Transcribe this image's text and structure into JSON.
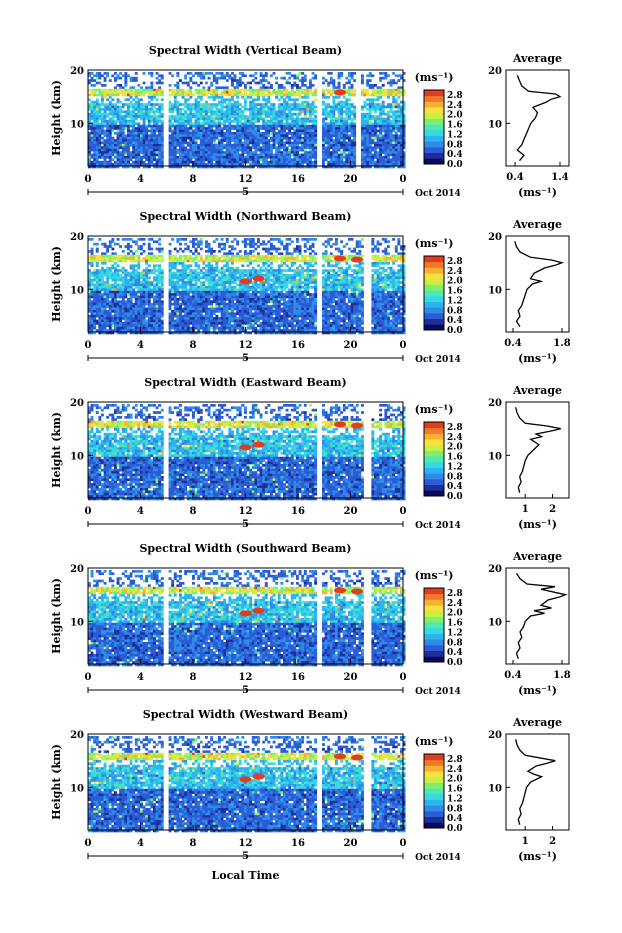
{
  "figure": {
    "xlabel": "Local Time",
    "cbar_colors": [
      "#0a0a5a",
      "#1f2f9a",
      "#2a5cd6",
      "#2f8ae8",
      "#2ab4f0",
      "#38d8e0",
      "#4ee8b0",
      "#7ef070",
      "#c8f040",
      "#f8e040",
      "#f8b030",
      "#f07828",
      "#e03c20"
    ]
  },
  "chart_data": [
    {
      "type": "heatmap",
      "title": "Spectral Width (Vertical Beam)",
      "ylabel": "Height (km)",
      "ylim": [
        2,
        20
      ],
      "yticks": [
        "10",
        "20"
      ],
      "xlim": [
        0,
        24
      ],
      "xticks": [
        "0",
        "4",
        "8",
        "12",
        "16",
        "20",
        "0"
      ],
      "date_marker": "5",
      "date_label": "Oct 2014",
      "gaps_hours": [
        5.8,
        17.6,
        20.5
      ],
      "colorbar": {
        "label": "(ms⁻¹)",
        "ticks": [
          "2.8",
          "2.4",
          "2.0",
          "1.6",
          "1.2",
          "0.8",
          "0.4",
          "0.0"
        ],
        "range": [
          0,
          3.0
        ]
      },
      "profile": {
        "title": "Average",
        "xlabel": "(ms⁻¹)",
        "xticks": [
          "0.4",
          "1.4"
        ],
        "xlim": [
          0.2,
          1.6
        ],
        "heights": [
          3,
          4,
          5,
          6,
          7,
          8,
          9,
          10,
          11,
          12,
          13,
          14,
          14.5,
          15,
          15.5,
          16,
          17,
          18,
          19
        ],
        "values": [
          0.5,
          0.6,
          0.45,
          0.55,
          0.6,
          0.65,
          0.7,
          0.75,
          0.85,
          0.9,
          0.8,
          1.1,
          1.2,
          1.4,
          1.3,
          0.7,
          0.55,
          0.5,
          0.45
        ]
      }
    },
    {
      "type": "heatmap",
      "title": "Spectral Width (Northward Beam)",
      "ylabel": "Height (km)",
      "ylim": [
        2,
        20
      ],
      "yticks": [
        "10",
        "20"
      ],
      "xlim": [
        0,
        24
      ],
      "xticks": [
        "0",
        "4",
        "8",
        "12",
        "16",
        "20",
        "0"
      ],
      "date_marker": "5",
      "date_label": "Oct 2014",
      "gaps_hours": [
        5.8,
        17.6,
        21.2
      ],
      "colorbar": {
        "label": "(ms⁻¹)",
        "ticks": [
          "2.8",
          "2.4",
          "2.0",
          "1.6",
          "1.2",
          "0.8",
          "0.4",
          "0.0"
        ],
        "range": [
          0,
          3.0
        ]
      },
      "profile": {
        "title": "Average",
        "xlabel": "(ms⁻¹)",
        "xticks": [
          "0.4",
          "1.8"
        ],
        "xlim": [
          0.2,
          2.0
        ],
        "heights": [
          3,
          4,
          5,
          6,
          7,
          8,
          9,
          10,
          11,
          11.5,
          12,
          13,
          14,
          14.5,
          15,
          15.5,
          16,
          17,
          18,
          19
        ],
        "values": [
          0.6,
          0.5,
          0.6,
          0.55,
          0.65,
          0.7,
          0.75,
          0.8,
          0.95,
          1.2,
          0.9,
          1.0,
          1.3,
          1.6,
          1.8,
          1.5,
          0.9,
          0.6,
          0.5,
          0.45
        ]
      }
    },
    {
      "type": "heatmap",
      "title": "Spectral Width (Eastward Beam)",
      "ylabel": "Height (km)",
      "ylim": [
        2,
        20
      ],
      "yticks": [
        "10",
        "20"
      ],
      "xlim": [
        0,
        24
      ],
      "xticks": [
        "0",
        "4",
        "8",
        "12",
        "16",
        "20",
        "0"
      ],
      "date_marker": "5",
      "date_label": "Oct 2014",
      "gaps_hours": [
        5.8,
        17.6,
        21.2
      ],
      "colorbar": {
        "label": "(ms⁻¹)",
        "ticks": [
          "2.8",
          "2.4",
          "2.0",
          "1.6",
          "1.2",
          "0.8",
          "0.4",
          "0.0"
        ],
        "range": [
          0,
          3.0
        ]
      },
      "profile": {
        "title": "Average",
        "xlabel": "(ms⁻¹)",
        "xticks": [
          "1",
          "2"
        ],
        "xlim": [
          0.3,
          2.6
        ],
        "heights": [
          3,
          4,
          5,
          6,
          7,
          8,
          9,
          10,
          11,
          12,
          13,
          13.5,
          14,
          14.5,
          15,
          15.5,
          16,
          17,
          18,
          19
        ],
        "values": [
          0.8,
          0.75,
          0.85,
          0.8,
          0.9,
          0.95,
          1.0,
          1.1,
          1.3,
          1.5,
          1.2,
          1.6,
          1.4,
          1.9,
          2.3,
          1.8,
          1.0,
          0.8,
          0.7,
          0.65
        ]
      }
    },
    {
      "type": "heatmap",
      "title": "Spectral Width (Southward Beam)",
      "ylabel": "Height (km)",
      "ylim": [
        2,
        20
      ],
      "yticks": [
        "10",
        "20"
      ],
      "xlim": [
        0,
        24
      ],
      "xticks": [
        "0",
        "4",
        "8",
        "12",
        "16",
        "20",
        "0"
      ],
      "date_marker": "5",
      "date_label": "Oct 2014",
      "gaps_hours": [
        5.8,
        17.6,
        21.2
      ],
      "colorbar": {
        "label": "(ms⁻¹)",
        "ticks": [
          "2.8",
          "2.4",
          "2.0",
          "1.6",
          "1.2",
          "0.8",
          "0.4",
          "0.0"
        ],
        "range": [
          0,
          3.0
        ]
      },
      "profile": {
        "title": "Average",
        "xlabel": "(ms⁻¹)",
        "xticks": [
          "0.4",
          "1.8"
        ],
        "xlim": [
          0.2,
          2.0
        ],
        "heights": [
          3,
          4,
          5,
          6,
          7,
          8,
          9,
          10,
          11,
          11.5,
          12,
          12.5,
          13,
          14,
          14.5,
          15,
          16,
          16.5,
          17,
          18,
          19
        ],
        "values": [
          0.55,
          0.5,
          0.6,
          0.55,
          0.65,
          0.6,
          0.7,
          0.75,
          0.9,
          1.3,
          1.0,
          1.5,
          1.2,
          1.4,
          1.7,
          1.9,
          1.2,
          1.6,
          0.8,
          0.6,
          0.5
        ]
      }
    },
    {
      "type": "heatmap",
      "title": "Spectral Width (Westward Beam)",
      "ylabel": "Height (km)",
      "ylim": [
        2,
        20
      ],
      "yticks": [
        "10",
        "20"
      ],
      "xlim": [
        0,
        24
      ],
      "xticks": [
        "0",
        "4",
        "8",
        "12",
        "16",
        "20",
        "0"
      ],
      "date_marker": "5",
      "date_label": "Oct 2014",
      "gaps_hours": [
        5.8,
        17.6,
        21.2
      ],
      "colorbar": {
        "label": "(ms⁻¹)",
        "ticks": [
          "2.8",
          "2.4",
          "2.0",
          "1.6",
          "1.2",
          "0.8",
          "0.4",
          "0.0"
        ],
        "range": [
          0,
          3.0
        ]
      },
      "profile": {
        "title": "Average",
        "xlabel": "(ms⁻¹)",
        "xticks": [
          "1",
          "2"
        ],
        "xlim": [
          0.3,
          2.6
        ],
        "heights": [
          3,
          4,
          5,
          6,
          7,
          8,
          9,
          10,
          11,
          12,
          12.5,
          13,
          14,
          14.5,
          15,
          16,
          17,
          18,
          19
        ],
        "values": [
          0.8,
          0.75,
          0.85,
          0.8,
          0.9,
          0.95,
          1.0,
          1.05,
          1.2,
          1.6,
          1.3,
          1.1,
          1.4,
          1.8,
          2.1,
          1.0,
          0.8,
          0.7,
          0.65
        ]
      }
    }
  ]
}
